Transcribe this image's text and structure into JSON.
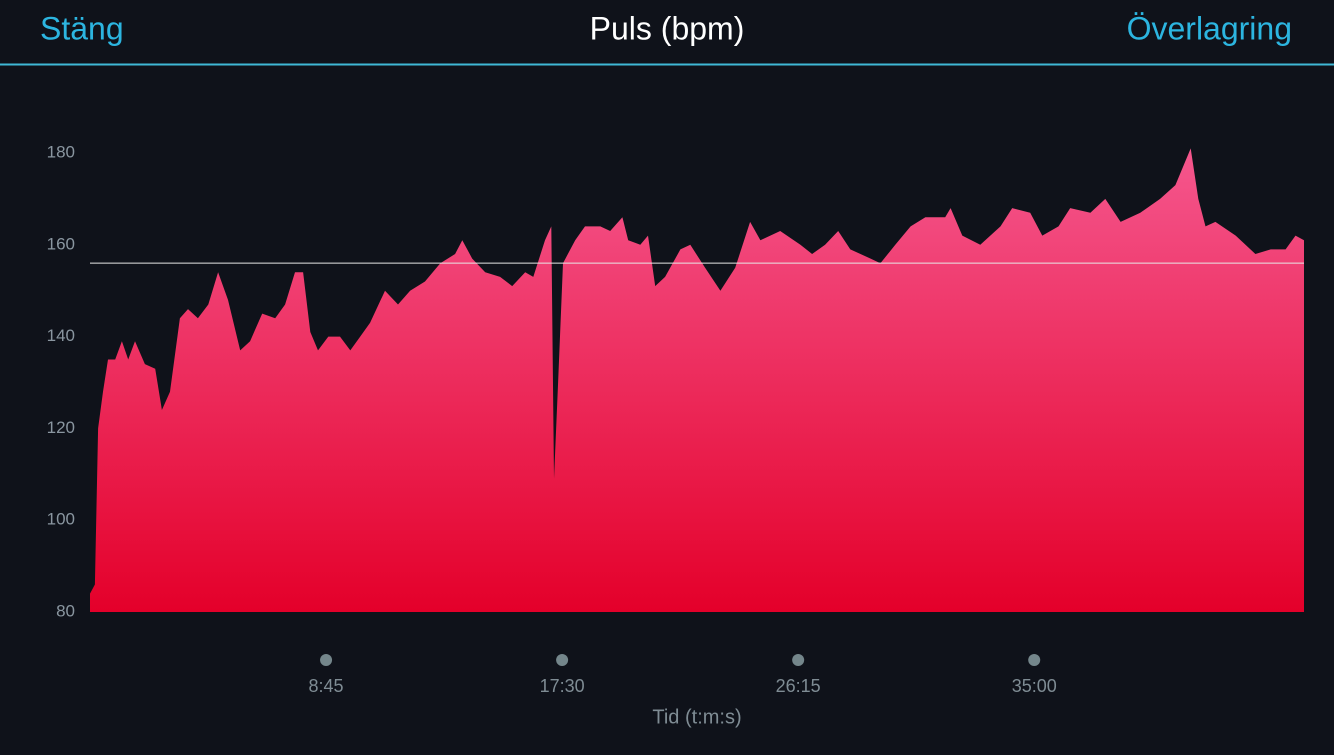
{
  "header": {
    "left": "Stäng",
    "title": "Puls (bpm)",
    "right": "Överlagring"
  },
  "chart_data": {
    "type": "area",
    "x_label": "Tid (t:m:s)",
    "x": [
      0,
      11,
      18,
      29,
      40,
      56,
      71,
      85,
      100,
      122,
      145,
      160,
      178,
      200,
      218,
      240,
      263,
      285,
      307,
      334,
      356,
      383,
      412,
      434,
      456,
      474,
      490,
      507,
      530,
      556,
      579,
      601,
      623,
      656,
      685,
      712,
      745,
      779,
      812,
      828,
      850,
      879,
      912,
      939,
      968,
      986,
      1012,
      1026,
      1032,
      1041,
      1052,
      1079,
      1101,
      1135,
      1157,
      1184,
      1197,
      1224,
      1241,
      1257,
      1279,
      1313,
      1335,
      1368,
      1402,
      1435,
      1468,
      1491,
      1535,
      1580,
      1606,
      1635,
      1664,
      1691,
      1736,
      1758,
      1791,
      1825,
      1858,
      1902,
      1914,
      1940,
      1980,
      2025,
      2051,
      2091,
      2118,
      2154,
      2180,
      2225,
      2258,
      2292,
      2336,
      2380,
      2414,
      2448,
      2465,
      2481,
      2503,
      2548,
      2592,
      2626,
      2659,
      2681,
      2700
    ],
    "y": [
      84,
      86,
      120,
      128,
      135,
      135,
      139,
      135,
      139,
      134,
      133,
      124,
      128,
      144,
      146,
      144,
      147,
      154,
      148,
      137,
      139,
      145,
      144,
      147,
      154,
      154,
      141,
      137,
      140,
      140,
      137,
      140,
      143,
      150,
      147,
      150,
      152,
      156,
      158,
      161,
      157,
      154,
      153,
      151,
      154,
      153,
      161,
      164,
      109,
      130,
      156,
      161,
      164,
      164,
      163,
      166,
      161,
      160,
      162,
      151,
      153,
      159,
      160,
      155,
      150,
      155,
      165,
      161,
      163,
      160,
      158,
      160,
      163,
      159,
      157,
      156,
      160,
      164,
      166,
      166,
      168,
      162,
      160,
      164,
      168,
      167,
      162,
      164,
      168,
      167,
      170,
      165,
      167,
      170,
      173,
      181,
      170,
      164,
      165,
      162,
      158,
      159,
      159,
      162,
      161
    ],
    "xlim": [
      0,
      2700
    ],
    "xticks": [
      {
        "value": 525,
        "label": "8:45"
      },
      {
        "value": 1050,
        "label": "17:30"
      },
      {
        "value": 1575,
        "label": "26:15"
      },
      {
        "value": 2100,
        "label": "35:00"
      }
    ],
    "ylim": [
      80,
      180
    ],
    "yticks": [
      80,
      100,
      120,
      140,
      160,
      180
    ],
    "reference_line": 156,
    "gradient": [
      "#f5578e",
      "#e4002a"
    ]
  }
}
